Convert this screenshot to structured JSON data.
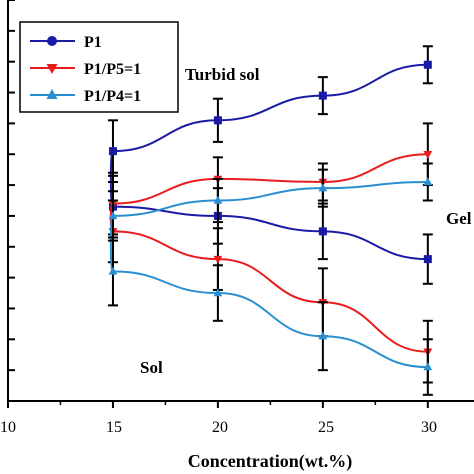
{
  "chart_data": {
    "type": "line",
    "xlabel": "Concentration(wt.%)",
    "ylabel": "",
    "xlim": [
      10,
      32.2
    ],
    "ylim": [
      0,
      13
    ],
    "x_ticks": [
      "10",
      "15",
      "20",
      "25",
      "30"
    ],
    "grid": false,
    "legend_position": "top-left",
    "annotations": [
      "Turbid sol",
      "Gel",
      "Sol"
    ],
    "series": [
      {
        "name": "P1",
        "color": "#1a1aa6",
        "marker": "square",
        "legend_marker": "circle",
        "x": [
          15,
          20,
          25,
          30
        ],
        "y": [
          8.1,
          9.1,
          9.9,
          10.9
        ],
        "err": [
          1.0,
          0.7,
          0.6,
          0.6
        ],
        "lower_x": [
          15,
          20,
          25,
          30
        ],
        "lower_y": [
          6.3,
          6.0,
          5.5,
          4.6
        ],
        "lower_err": [
          1.0,
          0.9,
          0.9,
          0.8
        ],
        "turn_x": 14.9
      },
      {
        "name": "P1/P5=1",
        "color": "#e81c1c",
        "marker": "triangle-down",
        "x": [
          15,
          20,
          25,
          30
        ],
        "y": [
          6.4,
          7.2,
          7.1,
          8.0
        ],
        "err": [
          1.0,
          0.7,
          0.6,
          1.0
        ],
        "lower_x": [
          15,
          20,
          25,
          30
        ],
        "lower_y": [
          5.5,
          4.6,
          3.2,
          1.6
        ],
        "lower_err": [
          1.0,
          1.0,
          1.1,
          1.0
        ],
        "turn_x": 14.9
      },
      {
        "name": "P1/P4=1",
        "color": "#2a8fd0",
        "marker": "triangle-up",
        "x": [
          15,
          20,
          25,
          30
        ],
        "y": [
          6.0,
          6.5,
          6.9,
          7.1
        ],
        "err": [
          0.8,
          0.7,
          0.6,
          0.6
        ],
        "lower_x": [
          15,
          20,
          25,
          30
        ],
        "lower_y": [
          4.2,
          3.5,
          2.1,
          1.1
        ],
        "lower_err": [
          1.1,
          0.9,
          1.1,
          0.9
        ],
        "turn_x": 14.9
      }
    ]
  }
}
